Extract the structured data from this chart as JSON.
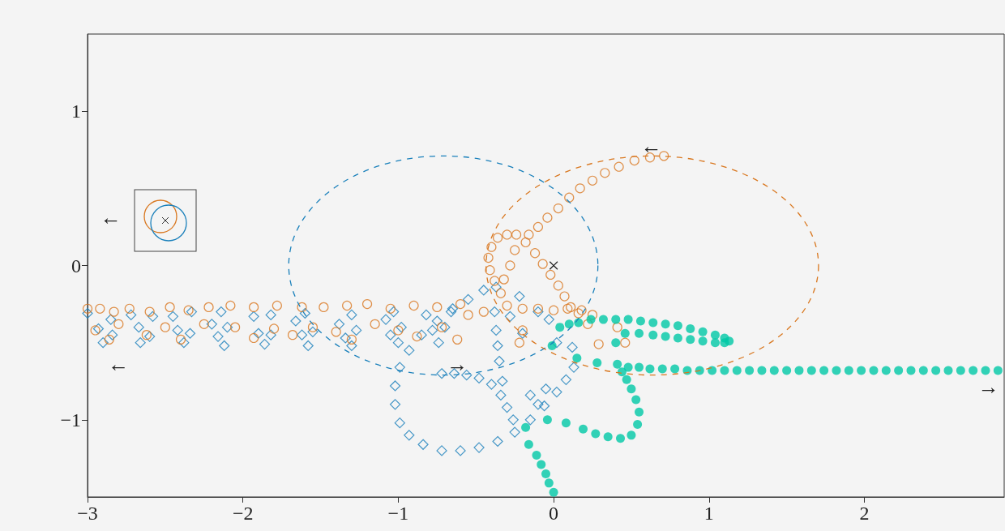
{
  "chart_data": {
    "type": "scatter",
    "xlim": [
      -3,
      2.9
    ],
    "ylim": [
      -1.5,
      1.5
    ],
    "xticks": [
      {
        "value": -3,
        "label": "−3"
      },
      {
        "value": -2,
        "label": "−2"
      },
      {
        "value": -1,
        "label": "−1"
      },
      0,
      1,
      2
    ],
    "yticks": [
      {
        "value": -1,
        "label": "−1"
      },
      0,
      1
    ],
    "grid": false,
    "series": [
      {
        "type": "scatter",
        "color": "#1a80bb",
        "marker": "diamond",
        "x": [
          -3.0,
          -2.93,
          -2.9,
          -2.84,
          -2.85,
          -2.72,
          -2.67,
          -2.66,
          -2.6,
          -2.58,
          -2.45,
          -2.42,
          -2.38,
          -2.34,
          -2.33,
          -2.2,
          -2.16,
          -2.12,
          -2.1,
          -2.14,
          -1.93,
          -1.9,
          -1.86,
          -1.82,
          -1.82,
          -1.66,
          -1.62,
          -1.58,
          -1.55,
          -1.6,
          -1.38,
          -1.34,
          -1.3,
          -1.27,
          -1.3,
          -1.08,
          -1.05,
          -1.0,
          -0.98,
          -1.03,
          -0.82,
          -0.78,
          -0.74,
          -0.7,
          -0.66,
          -0.45,
          -0.55,
          -0.65,
          -0.75,
          -0.85,
          -0.93,
          -0.99,
          -1.02,
          -1.02,
          -0.99,
          -0.93,
          -0.84,
          -0.72,
          -0.6,
          -0.48,
          -0.36,
          -0.25,
          -0.15,
          -0.06,
          0.02,
          0.08,
          0.13,
          -0.72,
          -0.64,
          -0.56,
          -0.48,
          -0.4,
          -0.34,
          -0.3,
          -0.26,
          -0.37,
          -0.38,
          -0.37,
          -0.36,
          -0.35,
          -0.33,
          -0.22,
          -0.28,
          -0.2,
          -0.1,
          -0.03,
          0.02,
          0.12,
          -0.05,
          -0.15,
          -0.1
        ],
        "values": [
          -0.31,
          -0.41,
          -0.5,
          -0.45,
          -0.35,
          -0.32,
          -0.4,
          -0.5,
          -0.46,
          -0.33,
          -0.33,
          -0.42,
          -0.5,
          -0.44,
          -0.3,
          -0.38,
          -0.46,
          -0.52,
          -0.4,
          -0.3,
          -0.33,
          -0.44,
          -0.51,
          -0.45,
          -0.32,
          -0.36,
          -0.45,
          -0.52,
          -0.43,
          -0.31,
          -0.38,
          -0.47,
          -0.52,
          -0.42,
          -0.32,
          -0.35,
          -0.45,
          -0.5,
          -0.4,
          -0.3,
          -0.32,
          -0.42,
          -0.5,
          -0.4,
          -0.3,
          -0.16,
          -0.22,
          -0.28,
          -0.36,
          -0.45,
          -0.55,
          -0.66,
          -0.78,
          -0.9,
          -1.02,
          -1.1,
          -1.16,
          -1.2,
          -1.2,
          -1.18,
          -1.14,
          -1.08,
          -1.0,
          -0.91,
          -0.82,
          -0.74,
          -0.66,
          -0.7,
          -0.7,
          -0.71,
          -0.73,
          -0.77,
          -0.84,
          -0.92,
          -1.0,
          -0.14,
          -0.3,
          -0.42,
          -0.52,
          -0.62,
          -0.75,
          -0.2,
          -0.33,
          -0.44,
          -0.3,
          -0.35,
          -0.5,
          -0.53,
          -0.8,
          -0.84,
          -0.9
        ]
      },
      {
        "type": "scatter",
        "color": "#d9771f",
        "marker": "circle",
        "x": [
          -3.0,
          -2.92,
          -2.83,
          -2.73,
          -2.6,
          -2.47,
          -2.35,
          -2.22,
          -2.08,
          -1.93,
          -1.78,
          -1.62,
          -1.48,
          -1.33,
          -1.2,
          -1.05,
          -0.9,
          -0.75,
          -0.6,
          -2.95,
          -2.86,
          -2.8,
          -2.62,
          -2.5,
          -2.4,
          -2.25,
          -2.05,
          -1.93,
          -1.8,
          -1.68,
          -1.55,
          -1.4,
          -1.3,
          -1.15,
          -1.0,
          -0.88,
          -0.72,
          -0.62,
          -0.55,
          -0.45,
          0.71,
          0.62,
          0.52,
          0.42,
          0.33,
          0.25,
          0.17,
          0.1,
          0.03,
          -0.04,
          -0.1,
          -0.16,
          -0.24,
          -0.3,
          -0.36,
          -0.4,
          -0.42,
          -0.41,
          -0.38,
          -0.34,
          -0.3,
          -0.18,
          -0.12,
          -0.07,
          -0.02,
          0.03,
          0.07,
          0.11,
          0.16,
          0.22,
          0.29,
          0.46,
          0.41,
          -0.2,
          -0.1,
          0.0,
          0.09,
          0.18,
          0.25,
          -0.25,
          -0.28,
          -0.32,
          -0.2,
          -0.22
        ],
        "values": [
          -0.28,
          -0.28,
          -0.3,
          -0.28,
          -0.3,
          -0.27,
          -0.29,
          -0.27,
          -0.26,
          -0.27,
          -0.26,
          -0.27,
          -0.27,
          -0.26,
          -0.25,
          -0.28,
          -0.26,
          -0.27,
          -0.25,
          -0.42,
          -0.48,
          -0.38,
          -0.45,
          -0.4,
          -0.48,
          -0.38,
          -0.4,
          -0.47,
          -0.41,
          -0.45,
          -0.4,
          -0.43,
          -0.48,
          -0.38,
          -0.42,
          -0.46,
          -0.4,
          -0.48,
          -0.32,
          -0.3,
          0.71,
          0.7,
          0.68,
          0.64,
          0.6,
          0.55,
          0.5,
          0.44,
          0.37,
          0.31,
          0.25,
          0.2,
          0.2,
          0.2,
          0.18,
          0.12,
          0.05,
          -0.03,
          -0.1,
          -0.18,
          -0.26,
          0.15,
          0.08,
          0.01,
          -0.06,
          -0.13,
          -0.2,
          -0.27,
          -0.31,
          -0.38,
          -0.51,
          -0.5,
          -0.4,
          -0.28,
          -0.28,
          -0.29,
          -0.28,
          -0.29,
          -0.32,
          0.1,
          0.0,
          -0.09,
          -0.42,
          -0.5
        ]
      },
      {
        "type": "scatter",
        "color": "#00c8a6",
        "marker": "circle",
        "x": [
          0.0,
          -0.03,
          -0.05,
          -0.08,
          -0.11,
          -0.16,
          -0.18,
          -0.04,
          0.08,
          0.19,
          0.27,
          0.35,
          0.43,
          0.5,
          0.54,
          0.55,
          0.53,
          0.5,
          0.47,
          0.44,
          0.41,
          0.48,
          0.55,
          0.62,
          0.7,
          0.78,
          0.86,
          0.94,
          1.02,
          1.1,
          1.18,
          1.26,
          1.34,
          1.42,
          1.5,
          1.58,
          1.66,
          1.74,
          1.82,
          1.9,
          1.98,
          2.06,
          2.14,
          2.22,
          2.3,
          2.38,
          2.46,
          2.54,
          2.62,
          2.7,
          2.78,
          2.86,
          0.15,
          0.28,
          -0.01,
          0.04,
          0.4,
          0.1,
          0.16,
          0.24,
          0.32,
          0.4,
          0.48,
          0.56,
          0.64,
          0.72,
          0.8,
          0.88,
          0.96,
          1.04,
          1.1,
          1.13,
          1.1,
          1.04,
          0.96,
          0.88,
          0.8,
          0.72,
          0.64,
          0.55,
          0.46
        ],
        "values": [
          -1.47,
          -1.41,
          -1.35,
          -1.29,
          -1.23,
          -1.16,
          -1.05,
          -1.0,
          -1.02,
          -1.06,
          -1.09,
          -1.11,
          -1.12,
          -1.1,
          -1.03,
          -0.95,
          -0.87,
          -0.8,
          -0.74,
          -0.69,
          -0.64,
          -0.66,
          -0.66,
          -0.67,
          -0.67,
          -0.67,
          -0.68,
          -0.68,
          -0.68,
          -0.68,
          -0.68,
          -0.68,
          -0.68,
          -0.68,
          -0.68,
          -0.68,
          -0.68,
          -0.68,
          -0.68,
          -0.68,
          -0.68,
          -0.68,
          -0.68,
          -0.68,
          -0.68,
          -0.68,
          -0.68,
          -0.68,
          -0.68,
          -0.68,
          -0.68,
          -0.68,
          -0.6,
          -0.63,
          -0.52,
          -0.4,
          -0.5,
          -0.38,
          -0.37,
          -0.35,
          -0.35,
          -0.35,
          -0.35,
          -0.36,
          -0.37,
          -0.38,
          -0.39,
          -0.41,
          -0.43,
          -0.45,
          -0.47,
          -0.49,
          -0.5,
          -0.5,
          -0.49,
          -0.48,
          -0.47,
          -0.46,
          -0.45,
          -0.44,
          -0.44
        ]
      }
    ],
    "annotations": [
      "←",
      "←",
      "←",
      "→",
      "→",
      "×"
    ]
  }
}
